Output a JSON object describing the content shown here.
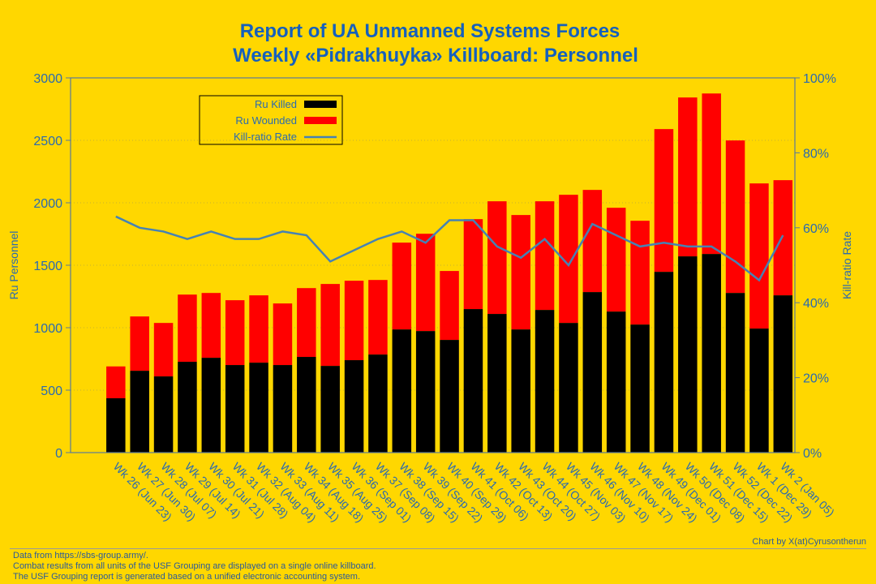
{
  "chart_data": {
    "type": "bar",
    "stacked": true,
    "title": [
      "Report of UA Unmanned Systems Forces",
      "Weekly «Pidrakhuyka» Killboard: Personnel"
    ],
    "xlabel": "",
    "ylabel": "Ru Personnel",
    "y2label": "Kill-ratio Rate",
    "ylim": [
      0,
      3000
    ],
    "y2lim": [
      0,
      100
    ],
    "yticks": [
      "0",
      "500",
      "1000",
      "1500",
      "2000",
      "2500",
      "3000"
    ],
    "y2ticks": [
      "0%",
      "20%",
      "40%",
      "60%",
      "80%",
      "100%"
    ],
    "grid": true,
    "legend_position": "top-left",
    "categories": [
      "Wk 26 (Jun 23)",
      "Wk 27 (Jun 30)",
      "Wk 28 (Jul 07)",
      "Wk 29 (Jul 14)",
      "Wk 30 (Jul 21)",
      "Wk 31 (Jul 28)",
      "Wk 32 (Aug 04)",
      "Wk 33 (Aug 11)",
      "Wk 34 (Aug 18)",
      "Wk 35 (Aug 25)",
      "Wk 36 (Sep 01)",
      "Wk 37 (Sep 08)",
      "Wk 38 (Sep 15)",
      "Wk 39 (Sep 22)",
      "Wk 40 (Sep 29)",
      "Wk 41 (Oct 06)",
      "Wk 42 (Oct 13)",
      "Wk 43 (Oct 20)",
      "Wk 44 (Oct 27)",
      "Wk 45 (Nov 03)",
      "Wk 46 (Nov 10)",
      "Wk 47 (Nov 17)",
      "Wk 48 (Nov 24)",
      "Wk 49 (Dec 01)",
      "Wk 50 (Dec 08)",
      "Wk 51 (Dec 15)",
      "Wk 52 (Dec 22)",
      "Wk 1 (Dec 29)",
      "Wk 2 (Jan 05)"
    ],
    "series": [
      {
        "name": "Ru Killed",
        "color": "#000000",
        "values": [
          435,
          655,
          610,
          727,
          759,
          701,
          720,
          701,
          766,
          694,
          740,
          785,
          986,
          973,
          902,
          1149,
          1110,
          986,
          1142,
          1038,
          1285,
          1129,
          1025,
          1447,
          1571,
          1590,
          1278,
          993,
          1259
        ]
      },
      {
        "name": "Ru Wounded",
        "color": "#FF0000",
        "values": [
          255,
          435,
          428,
          538,
          519,
          519,
          539,
          493,
          551,
          656,
          636,
          597,
          695,
          779,
          552,
          720,
          902,
          916,
          870,
          1026,
          818,
          831,
          831,
          1143,
          1272,
          1285,
          1221,
          1162,
          922
        ]
      },
      {
        "name": "Kill-ratio Rate",
        "color": "#4682B4",
        "axis": "right",
        "unit": "%",
        "values": [
          63,
          60,
          59,
          57,
          59,
          57,
          57,
          59,
          58,
          51,
          54,
          57,
          59,
          56,
          62,
          62,
          55,
          52,
          57,
          50,
          61,
          58,
          55,
          56,
          55,
          55,
          51,
          46,
          58
        ]
      }
    ]
  },
  "footer": {
    "lines": [
      "Data from https://sbs-group.army/.",
      "Combat results from all units of the USF Grouping are displayed on a single online killboard.",
      "The USF Grouping report is generated based on a unified electronic accounting system."
    ],
    "credit": "Chart by X(at)Cyrusontherun"
  },
  "colors": {
    "background": "#FFD700",
    "title": "#1560BD",
    "axis_text": "#2a6ab0",
    "axis": "#5a7a9a"
  }
}
